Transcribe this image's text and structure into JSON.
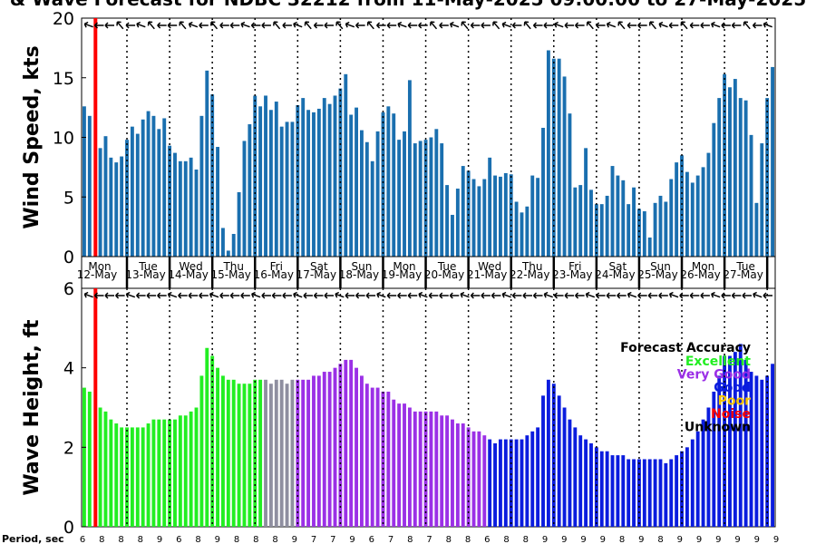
{
  "title": "& Wave Forecast for NDBC 32212 from 11-May-2025 09:00:00 to 27-May-2025",
  "period_label": "Period, sec",
  "colors": {
    "wind": "#1a6faf",
    "nowcast_line": "#ff0000",
    "excellent": "#22ee22",
    "transition": "#8f8fa0",
    "very_good": "#9b30e6",
    "good": "#0a1cde",
    "poor": "#f5c400",
    "noise": "#ff0000",
    "unknown": "#000000"
  },
  "legend": {
    "title": "Forecast Accuracy",
    "items": [
      {
        "label": "Excellent",
        "color": "#22ee22"
      },
      {
        "label": "Very Good",
        "color": "#9b30e6"
      },
      {
        "label": "Good",
        "color": "#0a1cde"
      },
      {
        "label": "Poor",
        "color": "#f5c400"
      },
      {
        "label": "Noise",
        "color": "#ff0000"
      },
      {
        "label": "Unknown",
        "color": "#000000"
      }
    ]
  },
  "days": [
    {
      "dow": "Mon",
      "date": "12-May"
    },
    {
      "dow": "Tue",
      "date": "13-May"
    },
    {
      "dow": "Wed",
      "date": "14-May"
    },
    {
      "dow": "Thu",
      "date": "15-May"
    },
    {
      "dow": "Fri",
      "date": "16-May"
    },
    {
      "dow": "Sat",
      "date": "17-May"
    },
    {
      "dow": "Sun",
      "date": "18-May"
    },
    {
      "dow": "Mon",
      "date": "19-May"
    },
    {
      "dow": "Tue",
      "date": "20-May"
    },
    {
      "dow": "Wed",
      "date": "21-May"
    },
    {
      "dow": "Thu",
      "date": "22-May"
    },
    {
      "dow": "Fri",
      "date": "23-May"
    },
    {
      "dow": "Sat",
      "date": "24-May"
    },
    {
      "dow": "Sun",
      "date": "25-May"
    },
    {
      "dow": "Mon",
      "date": "26-May"
    },
    {
      "dow": "Tue",
      "date": "27-May"
    }
  ],
  "chart_data": [
    {
      "type": "bar",
      "ylabel": "Wind Speed, kts",
      "ylim": [
        0,
        20
      ],
      "yticks": [
        0,
        5,
        10,
        15,
        20
      ],
      "values": [
        12.6,
        11.8,
        0,
        9.1,
        10.1,
        8.3,
        7.9,
        8.4,
        9.8,
        10.9,
        10.3,
        11.5,
        12.2,
        11.8,
        10.7,
        11.6,
        9.3,
        8.7,
        8.0,
        8.0,
        8.3,
        7.3,
        11.8,
        15.6,
        13.6,
        9.2,
        2.4,
        0.5,
        1.9,
        5.4,
        9.7,
        11.1,
        13.5,
        12.6,
        13.5,
        12.3,
        13.0,
        10.9,
        11.3,
        11.3,
        12.7,
        13.3,
        12.3,
        12.1,
        12.4,
        13.3,
        12.8,
        13.5,
        14.1,
        15.3,
        11.9,
        12.5,
        10.6,
        9.6,
        8.0,
        10.5,
        12.1,
        12.6,
        12.0,
        9.8,
        10.5,
        14.8,
        9.5,
        9.7,
        9.8,
        10.0,
        10.7,
        9.5,
        6.0,
        3.5,
        5.7,
        7.6,
        7.2,
        6.5,
        5.9,
        6.5,
        8.3,
        6.8,
        6.7,
        7.0,
        6.9,
        4.6,
        3.7,
        4.2,
        6.8,
        6.6,
        10.8,
        17.3,
        16.6,
        16.6,
        15.1,
        12.0,
        5.8,
        6.0,
        9.1,
        5.6,
        4.4,
        4.4,
        5.1,
        7.6,
        6.8,
        6.4,
        4.4,
        5.8,
        4.0,
        3.8,
        1.6,
        4.5,
        5.1,
        4.6,
        6.5,
        7.9,
        8.5,
        7.1,
        6.2,
        6.8,
        7.5,
        8.7,
        11.2,
        13.3,
        15.3,
        14.2,
        14.9,
        13.3,
        13.1,
        10.2,
        4.5,
        9.5,
        13.3,
        15.9
      ]
    },
    {
      "type": "bar",
      "ylabel": "Wave Height, ft",
      "ylim": [
        0,
        6
      ],
      "yticks": [
        0,
        2,
        4,
        6
      ],
      "values": [
        3.5,
        3.4,
        0,
        3.0,
        2.9,
        2.7,
        2.6,
        2.5,
        2.5,
        2.5,
        2.5,
        2.5,
        2.6,
        2.7,
        2.7,
        2.7,
        2.7,
        2.7,
        2.8,
        2.8,
        2.9,
        3.0,
        3.8,
        4.5,
        4.3,
        4.0,
        3.8,
        3.7,
        3.7,
        3.6,
        3.6,
        3.6,
        3.7,
        3.7,
        3.7,
        3.6,
        3.7,
        3.7,
        3.6,
        3.7,
        3.7,
        3.7,
        3.7,
        3.8,
        3.8,
        3.9,
        3.9,
        4.0,
        4.1,
        4.2,
        4.2,
        4.0,
        3.8,
        3.6,
        3.5,
        3.5,
        3.4,
        3.4,
        3.2,
        3.1,
        3.1,
        3.0,
        2.9,
        2.9,
        2.9,
        2.9,
        2.9,
        2.8,
        2.8,
        2.7,
        2.6,
        2.6,
        2.5,
        2.4,
        2.4,
        2.3,
        2.2,
        2.1,
        2.2,
        2.2,
        2.2,
        2.2,
        2.2,
        2.3,
        2.4,
        2.5,
        3.3,
        3.7,
        3.6,
        3.3,
        3.0,
        2.7,
        2.5,
        2.3,
        2.2,
        2.1,
        2.0,
        1.9,
        1.9,
        1.8,
        1.8,
        1.8,
        1.7,
        1.7,
        1.7,
        1.7,
        1.7,
        1.7,
        1.7,
        1.6,
        1.7,
        1.8,
        1.9,
        2.0,
        2.2,
        2.4,
        2.7,
        3.0,
        3.4,
        3.8,
        4.3,
        4.3,
        4.4,
        4.6,
        4.2,
        3.9,
        3.8,
        3.7,
        3.8,
        4.1
      ],
      "categories": [
        "Excellent",
        "Excellent",
        "Unknown",
        "Excellent",
        "Excellent",
        "Excellent",
        "Excellent",
        "Excellent",
        "Excellent",
        "Excellent",
        "Excellent",
        "Excellent",
        "Excellent",
        "Excellent",
        "Excellent",
        "Excellent",
        "Excellent",
        "Excellent",
        "Excellent",
        "Excellent",
        "Excellent",
        "Excellent",
        "Excellent",
        "Excellent",
        "Excellent",
        "Excellent",
        "Excellent",
        "Excellent",
        "Excellent",
        "Excellent",
        "Excellent",
        "Excellent",
        "Excellent",
        "Excellent",
        "Transition",
        "Transition",
        "Transition",
        "Transition",
        "Transition",
        "Transition",
        "Very Good",
        "Very Good",
        "Very Good",
        "Very Good",
        "Very Good",
        "Very Good",
        "Very Good",
        "Very Good",
        "Very Good",
        "Very Good",
        "Very Good",
        "Very Good",
        "Very Good",
        "Very Good",
        "Very Good",
        "Very Good",
        "Very Good",
        "Very Good",
        "Very Good",
        "Very Good",
        "Very Good",
        "Very Good",
        "Very Good",
        "Very Good",
        "Very Good",
        "Very Good",
        "Very Good",
        "Very Good",
        "Very Good",
        "Very Good",
        "Very Good",
        "Very Good",
        "Very Good",
        "Very Good",
        "Very Good",
        "Very Good",
        "Good",
        "Good",
        "Good",
        "Good",
        "Good",
        "Good",
        "Good",
        "Good",
        "Good",
        "Good",
        "Good",
        "Good",
        "Good",
        "Good",
        "Good",
        "Good",
        "Good",
        "Good",
        "Good",
        "Good",
        "Good",
        "Good",
        "Good",
        "Good",
        "Good",
        "Good",
        "Good",
        "Good",
        "Good",
        "Good",
        "Good",
        "Good",
        "Good",
        "Good",
        "Good",
        "Good",
        "Good",
        "Good",
        "Good",
        "Good",
        "Good",
        "Good",
        "Good",
        "Good",
        "Good",
        "Good",
        "Good",
        "Good",
        "Good",
        "Good",
        "Good",
        "Good",
        "Good",
        "Good"
      ]
    }
  ],
  "periods": [
    "6",
    "8",
    "8",
    "8",
    "9",
    "6",
    "8",
    "9",
    "8",
    "8",
    "8",
    "9",
    "7",
    "7",
    "9",
    "6",
    "7",
    "8",
    "7",
    "8",
    "8",
    "6",
    "8",
    "8",
    "9",
    "9",
    "9",
    "9",
    "8",
    "9",
    "8",
    "9",
    "9",
    "9",
    "9",
    "9",
    "9"
  ]
}
